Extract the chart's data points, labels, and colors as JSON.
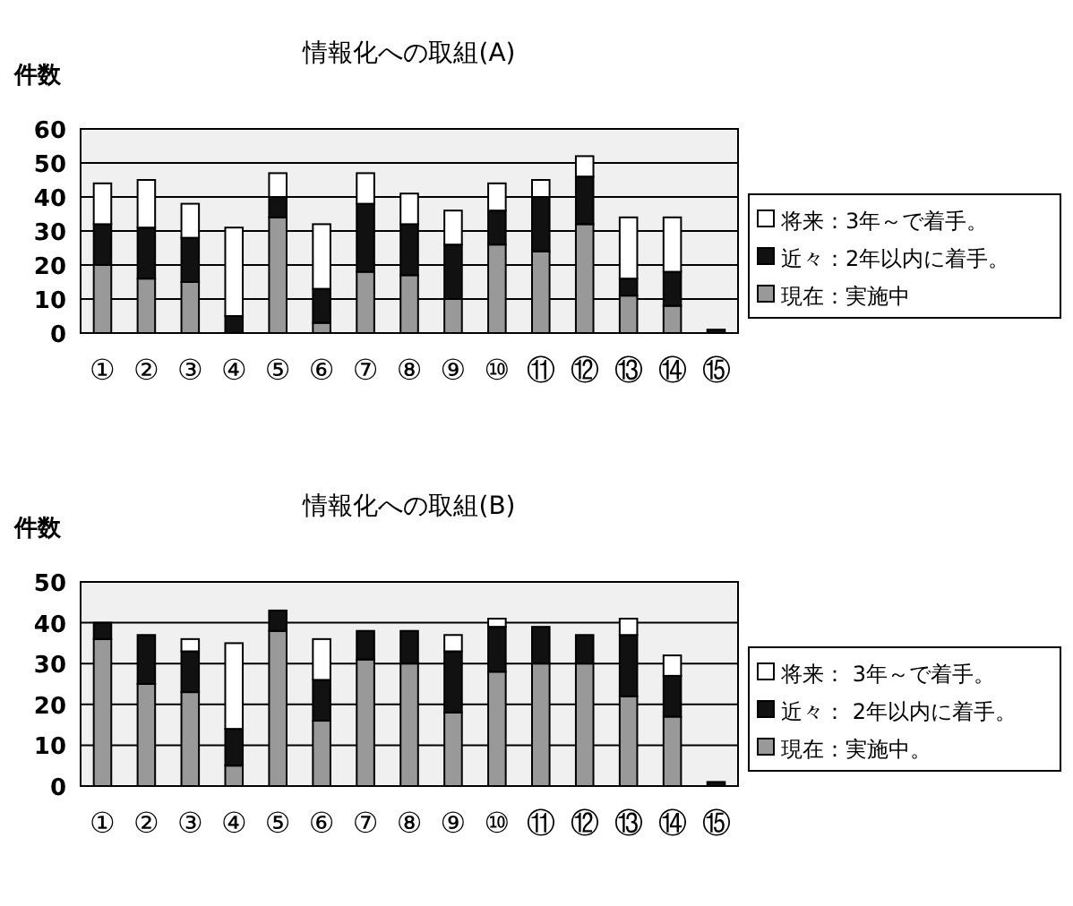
{
  "chart_data": [
    {
      "type": "bar",
      "stacked": true,
      "title": "情報化への取組(A)",
      "ylabel": "件数",
      "categories": [
        "①",
        "②",
        "③",
        "④",
        "⑤",
        "⑥",
        "⑦",
        "⑧",
        "⑨",
        "⑩",
        "⑪",
        "⑫",
        "⑬",
        "⑭",
        "⑮"
      ],
      "ylim": [
        0,
        60
      ],
      "yticks": [
        0,
        10,
        20,
        30,
        40,
        50,
        60
      ],
      "grid": "y",
      "legend": "right",
      "series": [
        {
          "name": "現在：実施中",
          "color": "#999999",
          "values": [
            20,
            16,
            15,
            0,
            34,
            3,
            18,
            17,
            10,
            26,
            24,
            32,
            11,
            8,
            0
          ]
        },
        {
          "name": "近々：2年以内に着手。",
          "color": "#111111",
          "values": [
            12,
            15,
            13,
            5,
            6,
            10,
            20,
            15,
            16,
            10,
            16,
            14,
            5,
            10,
            1
          ]
        },
        {
          "name": "将来：3年～で着手。",
          "color": "#ffffff",
          "values": [
            12,
            14,
            10,
            26,
            7,
            19,
            9,
            9,
            10,
            8,
            5,
            6,
            18,
            16,
            0
          ]
        }
      ]
    },
    {
      "type": "bar",
      "stacked": true,
      "title": "情報化への取組(B)",
      "ylabel": "件数",
      "categories": [
        "①",
        "②",
        "③",
        "④",
        "⑤",
        "⑥",
        "⑦",
        "⑧",
        "⑨",
        "⑩",
        "⑪",
        "⑫",
        "⑬",
        "⑭",
        "⑮"
      ],
      "ylim": [
        0,
        50
      ],
      "yticks": [
        0,
        10,
        20,
        30,
        40,
        50
      ],
      "grid": "y",
      "legend": "right",
      "series": [
        {
          "name": "現在：実施中。",
          "color": "#999999",
          "values": [
            36,
            25,
            23,
            5,
            38,
            16,
            31,
            30,
            18,
            28,
            30,
            30,
            22,
            17,
            0
          ]
        },
        {
          "name": "近々： 2年以内に着手。",
          "color": "#111111",
          "values": [
            4,
            12,
            10,
            9,
            5,
            10,
            7,
            8,
            15,
            11,
            9,
            7,
            15,
            10,
            1
          ]
        },
        {
          "name": "将来： 3年～で着手。",
          "color": "#ffffff",
          "values": [
            0,
            0,
            3,
            21,
            0,
            10,
            0,
            0,
            4,
            2,
            0,
            0,
            4,
            5,
            0
          ]
        }
      ]
    }
  ]
}
